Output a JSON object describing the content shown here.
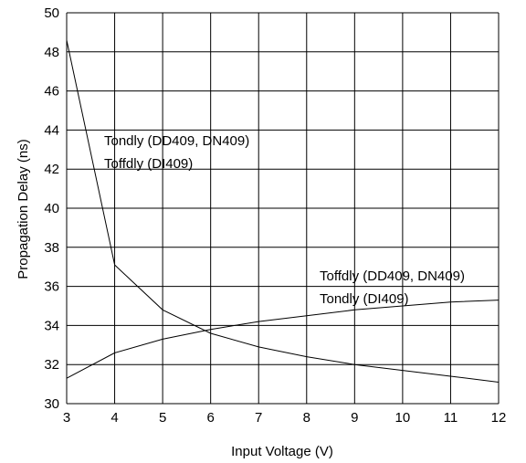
{
  "chart_data": {
    "type": "line",
    "xlabel": "Input Voltage (V)",
    "ylabel": "Propagation Delay (ns)",
    "xlim": [
      3,
      12
    ],
    "ylim": [
      30,
      50
    ],
    "grid": true,
    "x_ticks": [
      "3",
      "4",
      "5",
      "6",
      "7",
      "8",
      "9",
      "10",
      "11",
      "12"
    ],
    "y_ticks": [
      "30",
      "32",
      "34",
      "36",
      "38",
      "40",
      "42",
      "44",
      "46",
      "48",
      "50"
    ],
    "series": [
      {
        "x": [
          3,
          4,
          5,
          6,
          7,
          8,
          9,
          10,
          11,
          12
        ],
        "y": [
          48.6,
          37.1,
          34.8,
          33.6,
          32.9,
          32.4,
          32.0,
          31.7,
          31.4,
          31.1
        ]
      },
      {
        "x": [
          3,
          4,
          5,
          6,
          7,
          8,
          9,
          10,
          11,
          12
        ],
        "y": [
          31.3,
          32.6,
          33.3,
          33.8,
          34.2,
          34.5,
          34.8,
          35.0,
          35.2,
          35.3
        ]
      }
    ],
    "annotations": [
      {
        "line1": "Tondly (DD409, DN409)",
        "line2": "Toffdly (DI409)"
      },
      {
        "line1": "Toffdly (DD409, DN409)",
        "line2": "Tondly (DI409)"
      }
    ]
  }
}
